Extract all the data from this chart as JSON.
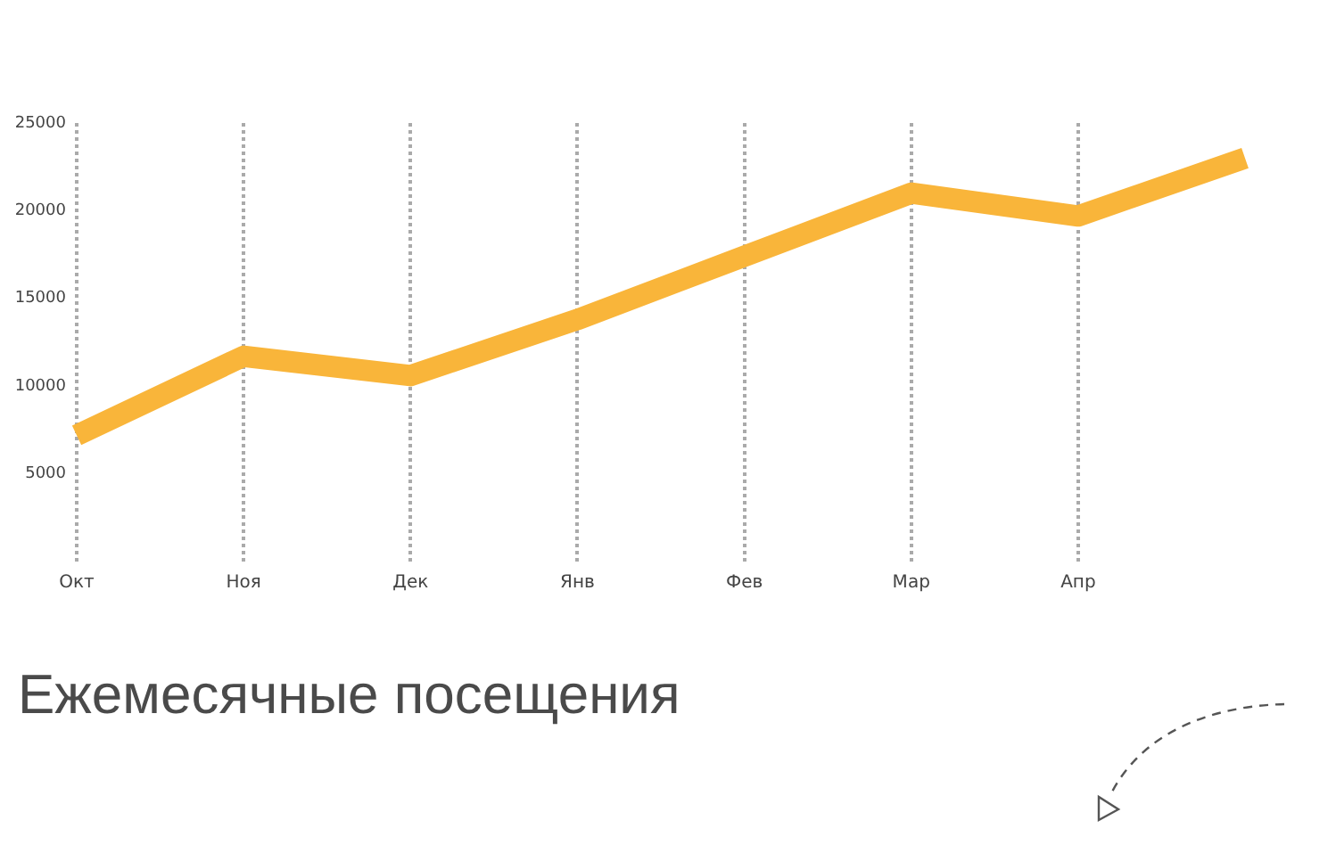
{
  "chart_data": {
    "type": "line",
    "title": "Ежемесячные посещения",
    "categories": [
      "Окт",
      "Ноя",
      "Дек",
      "Янв",
      "Фев",
      "Мар",
      "Апр",
      null
    ],
    "series": [
      {
        "color": "#f9b53a",
        "values": [
          7200,
          11700,
          10600,
          13800,
          17400,
          21000,
          19700,
          23000
        ]
      }
    ],
    "ylim": [
      0,
      25000
    ],
    "yticks": [
      5000,
      10000,
      15000,
      20000,
      25000
    ],
    "grid": "x",
    "legend": false,
    "marker": "none"
  }
}
